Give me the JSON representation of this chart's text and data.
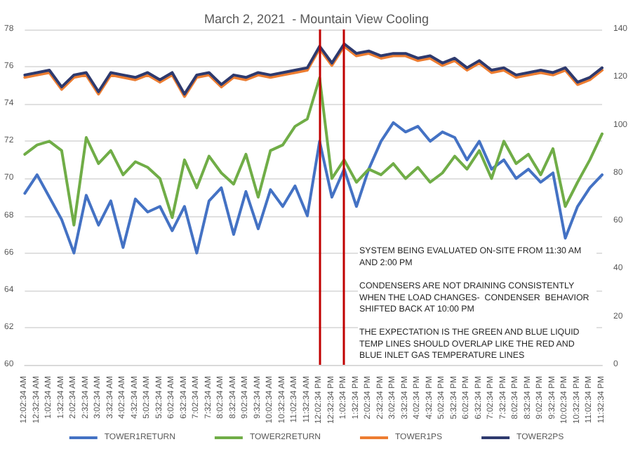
{
  "chart_data": {
    "type": "line",
    "title": "March 2, 2021  - Mountain View Cooling",
    "categories": [
      "12:02:34 AM",
      "12:32:34 AM",
      "1:02:34 AM",
      "1:32:34 AM",
      "2:02:34 AM",
      "2:32:34 AM",
      "3:02:34 AM",
      "3:32:34 AM",
      "4:02:34 AM",
      "4:32:34 AM",
      "5:02:34 AM",
      "5:32:34 AM",
      "6:02:34 AM",
      "6:32:34 AM",
      "7:02:34 AM",
      "7:32:34 AM",
      "8:02:34 AM",
      "8:32:34 AM",
      "9:02:34 AM",
      "9:32:34 AM",
      "10:02:34 AM",
      "10:32:34 AM",
      "11:02:34 AM",
      "11:32:34 AM",
      "12:02:34 PM",
      "12:32:34 PM",
      "1:02:34 PM",
      "1:32:34 PM",
      "2:02:34 PM",
      "2:32:34 PM",
      "3:02:34 PM",
      "3:32:34 PM",
      "4:02:34 PM",
      "4:32:34 PM",
      "5:02:34 PM",
      "5:32:34 PM",
      "6:02:34 PM",
      "6:32:34 PM",
      "7:02:34 PM",
      "7:32:34 PM",
      "8:02:34 PM",
      "8:32:34 PM",
      "9:02:34 PM",
      "9:32:34 PM",
      "10:02:34 PM",
      "10:32:34 PM",
      "11:02:34 PM",
      "11:32:34 PM"
    ],
    "series": [
      {
        "name": "TOWER1RETURN",
        "color": "#4472c4",
        "values": [
          69.2,
          70.2,
          69.0,
          67.8,
          66.0,
          69.1,
          67.5,
          68.8,
          66.3,
          68.9,
          68.2,
          68.5,
          67.2,
          68.5,
          66.0,
          68.8,
          69.5,
          67.0,
          69.3,
          67.3,
          69.4,
          68.5,
          69.6,
          68.0,
          72.0,
          69.0,
          70.5,
          68.5,
          70.5,
          72.0,
          73.0,
          72.5,
          72.8,
          72.0,
          72.5,
          72.2,
          71.0,
          72.0,
          70.5,
          71.0,
          70.0,
          70.5,
          69.8,
          70.3,
          66.8,
          68.5,
          69.5,
          70.2
        ]
      },
      {
        "name": "TOWER2RETURN",
        "color": "#70ad47",
        "values": [
          71.3,
          71.8,
          72.0,
          71.5,
          67.5,
          72.2,
          70.8,
          71.5,
          70.2,
          70.9,
          70.6,
          70.0,
          67.9,
          71.0,
          69.5,
          71.2,
          70.3,
          69.7,
          71.3,
          69.0,
          71.5,
          71.8,
          72.8,
          73.2,
          75.4,
          70.0,
          71.0,
          69.8,
          70.5,
          70.2,
          70.8,
          70.0,
          70.6,
          69.8,
          70.3,
          71.2,
          70.5,
          71.5,
          70.0,
          72.0,
          70.8,
          71.3,
          70.2,
          71.6,
          68.5,
          69.8,
          71.0,
          72.4
        ]
      },
      {
        "name": "TOWER1PS",
        "color": "#ed7d31",
        "axis": "y2",
        "values": [
          120,
          121,
          122,
          115,
          120,
          121,
          113,
          121,
          120,
          119,
          121,
          118,
          121,
          112,
          120,
          121,
          116,
          120,
          119,
          121,
          120,
          121,
          122,
          123,
          132,
          125,
          133,
          129,
          130,
          128,
          129,
          129,
          127,
          128,
          125,
          127,
          123,
          126,
          122,
          123,
          120,
          121,
          122,
          121,
          123,
          117,
          119,
          123
        ]
      },
      {
        "name": "TOWER2PS",
        "color": "#2e3a6e",
        "axis": "y2",
        "values": [
          121,
          122,
          123,
          116,
          121,
          122,
          114,
          122,
          121,
          120,
          122,
          119,
          122,
          113,
          121,
          122,
          117,
          121,
          120,
          122,
          121,
          122,
          123,
          124,
          133,
          126,
          134,
          130,
          131,
          129,
          130,
          130,
          128,
          129,
          126,
          128,
          124,
          127,
          123,
          124,
          121,
          122,
          123,
          122,
          124,
          118,
          120,
          124
        ]
      }
    ],
    "ylim": [
      60,
      78
    ],
    "yticks": [
      60,
      62,
      64,
      66,
      68,
      70,
      72,
      74,
      76,
      78
    ],
    "y2lim": [
      0,
      140
    ],
    "y2ticks": [
      0,
      20,
      40,
      60,
      80,
      100,
      120,
      140
    ],
    "ref_lines": [
      {
        "axis": "x",
        "value": "12:02:34 PM",
        "color": "#c00000"
      },
      {
        "axis": "x",
        "value": "1:02:34 PM",
        "color": "#c00000"
      }
    ],
    "annotations": [
      "SYSTEM BEING EVALUATED ON-SITE FROM 11:30 AM AND 2:00 PM",
      "CONDENSERS ARE NOT DRAINING CONSISTENTLY WHEN THE LOAD CHANGES-  CONDENSER  BEHAVIOR SHIFTED BACK AT 10:00 PM",
      "THE EXPECTATION IS THE GREEN AND BLUE LIQUID TEMP LINES SHOULD OVERLAP LIKE THE RED AND BLUE INLET GAS TEMPERATURE LINES"
    ],
    "grid": "y",
    "legend": "bottom",
    "marker": "none",
    "line_style": "solid"
  }
}
